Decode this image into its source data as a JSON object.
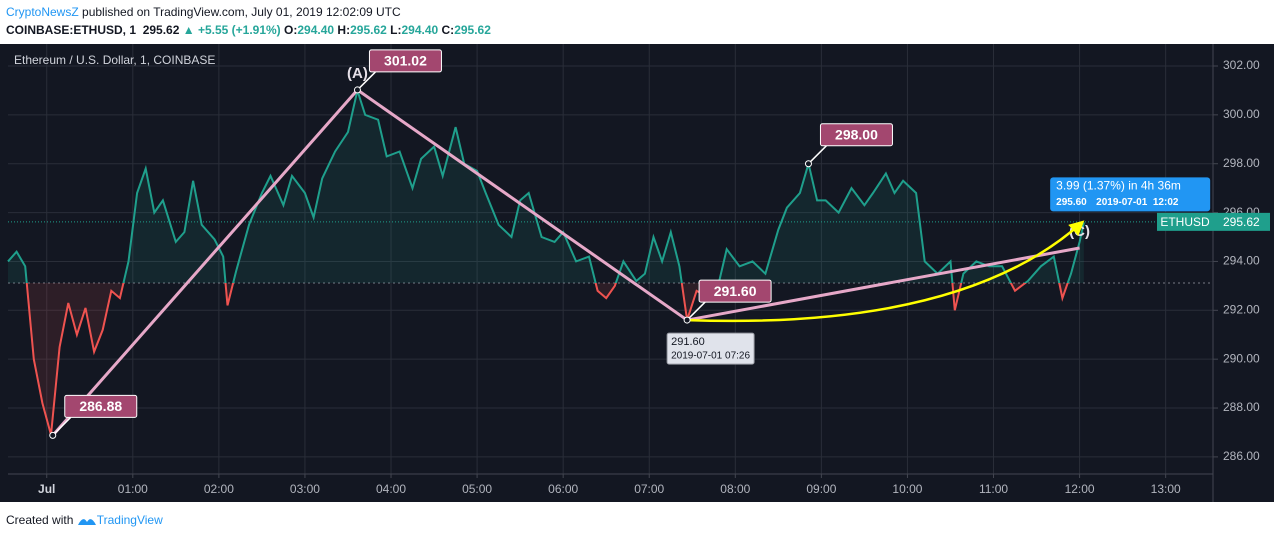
{
  "header": {
    "author": "CryptoNewsZ",
    "published": "published on TradingView.com, July 01, 2019 12:02:09 UTC",
    "symbol": "COINBASE:ETHUSD, 1",
    "price": "295.62",
    "change": "+5.55 (+1.91%)",
    "ohlc": [
      {
        "key": "O:",
        "value": "294.40"
      },
      {
        "key": "H:",
        "value": "295.62"
      },
      {
        "key": "L:",
        "value": "294.40"
      },
      {
        "key": "C:",
        "value": "295.62"
      }
    ]
  },
  "footer": {
    "text": "Created with",
    "brand": "TradingView"
  },
  "chart_data": {
    "type": "line",
    "title": "Ethereum / U.S. Dollar, 1, COINBASE",
    "xlim": [
      -0.45,
      13.55
    ],
    "xticks": [
      {
        "value": 0,
        "label": "Jul"
      },
      {
        "value": 1,
        "label": "01:00"
      },
      {
        "value": 2,
        "label": "02:00"
      },
      {
        "value": 3,
        "label": "03:00"
      },
      {
        "value": 4,
        "label": "04:00"
      },
      {
        "value": 5,
        "label": "05:00"
      },
      {
        "value": 6,
        "label": "06:00"
      },
      {
        "value": 7,
        "label": "07:00"
      },
      {
        "value": 8,
        "label": "08:00"
      },
      {
        "value": 9,
        "label": "09:00"
      },
      {
        "value": 10,
        "label": "10:00"
      },
      {
        "value": 11,
        "label": "11:00"
      },
      {
        "value": 12,
        "label": "12:00"
      },
      {
        "value": 13,
        "label": "13:00"
      }
    ],
    "ylim": [
      285.3,
      302.9
    ],
    "yticks": [
      {
        "value": 286,
        "label": "286.00"
      },
      {
        "value": 288,
        "label": "288.00"
      },
      {
        "value": 290,
        "label": "290.00"
      },
      {
        "value": 292,
        "label": "292.00"
      },
      {
        "value": 294,
        "label": "294.00"
      },
      {
        "value": 296,
        "label": "296.00"
      },
      {
        "value": 298,
        "label": "298.00"
      },
      {
        "value": 300,
        "label": "300.00"
      },
      {
        "value": 302,
        "label": "302.00"
      }
    ],
    "grid": true,
    "baseline": 293.12,
    "up_color": "#1f9f8c",
    "down_color": "#ef5350",
    "x": [
      -0.45,
      -0.35,
      -0.25,
      -0.15,
      -0.05,
      0.05,
      0.15,
      0.25,
      0.35,
      0.45,
      0.55,
      0.65,
      0.75,
      0.85,
      0.95,
      1.05,
      1.15,
      1.25,
      1.35,
      1.5,
      1.6,
      1.7,
      1.8,
      1.95,
      2.05,
      2.1,
      2.2,
      2.35,
      2.5,
      2.6,
      2.75,
      2.85,
      3.0,
      3.1,
      3.2,
      3.35,
      3.5,
      3.61,
      3.7,
      3.85,
      3.95,
      4.1,
      4.25,
      4.35,
      4.5,
      4.6,
      4.75,
      4.85,
      5.0,
      5.1,
      5.25,
      5.4,
      5.5,
      5.6,
      5.75,
      5.9,
      6.0,
      6.15,
      6.3,
      6.4,
      6.5,
      6.6,
      6.7,
      6.85,
      6.95,
      7.05,
      7.15,
      7.25,
      7.35,
      7.44,
      7.55,
      7.7,
      7.8,
      7.9,
      8.05,
      8.2,
      8.35,
      8.5,
      8.6,
      8.75,
      8.85,
      8.95,
      9.05,
      9.2,
      9.35,
      9.5,
      9.6,
      9.75,
      9.85,
      9.95,
      10.1,
      10.2,
      10.35,
      10.5,
      10.55,
      10.65,
      10.8,
      10.95,
      11.1,
      11.25,
      11.4,
      11.55,
      11.7,
      11.8,
      11.9,
      12.0,
      12.05
    ],
    "values": [
      294.0,
      294.4,
      293.8,
      290.0,
      288.2,
      286.9,
      290.5,
      292.3,
      291.0,
      292.1,
      290.3,
      291.2,
      292.8,
      292.5,
      294.0,
      296.8,
      297.8,
      296.0,
      296.5,
      294.8,
      295.2,
      297.3,
      295.5,
      294.9,
      294.2,
      292.2,
      293.6,
      295.5,
      296.8,
      297.5,
      296.3,
      297.5,
      296.8,
      295.8,
      297.4,
      298.5,
      299.3,
      301.0,
      300.0,
      299.8,
      298.3,
      298.5,
      297.0,
      298.2,
      298.7,
      297.5,
      299.5,
      298.0,
      297.7,
      296.8,
      295.5,
      295.0,
      296.5,
      296.8,
      295.0,
      294.8,
      295.2,
      294.0,
      294.2,
      292.8,
      292.5,
      293.0,
      294.0,
      293.2,
      293.5,
      295.0,
      294.0,
      295.2,
      293.8,
      291.6,
      292.8,
      292.5,
      293.0,
      294.5,
      293.8,
      294.0,
      293.5,
      295.3,
      296.2,
      296.8,
      298.0,
      296.5,
      296.5,
      296.0,
      297.0,
      296.3,
      296.8,
      297.6,
      296.8,
      297.3,
      296.8,
      294.0,
      293.5,
      294.0,
      292.0,
      293.5,
      294.0,
      293.8,
      293.8,
      292.8,
      293.2,
      293.8,
      294.2,
      292.5,
      293.5,
      294.8,
      295.6
    ],
    "points": {
      "x": [
        3.61,
        0.07,
        7.44,
        8.85
      ],
      "values": [
        301.02,
        286.88,
        291.6,
        298.0
      ],
      "value_labels": [
        "301.02",
        "286.88",
        "291.60",
        "298.00"
      ],
      "color": "#a3476f"
    },
    "pattern": {
      "x": [
        0.07,
        3.61,
        7.44,
        12.0
      ],
      "values": [
        286.88,
        301.02,
        291.6,
        294.55
      ],
      "labels": [
        null,
        "(A)",
        null,
        "(C)"
      ],
      "color": "#e6a8c8"
    },
    "measure": {
      "x": [
        7.44,
        12.03
      ],
      "values": [
        291.6,
        295.6
      ],
      "value_labels": [
        "291.60",
        "295.60"
      ],
      "start_time": "2019-07-01 07:26",
      "text": "3.99 (1.37%) in 4h 36m",
      "time": "2019-07-01  12:02",
      "color": "#ffff00",
      "box_color": "#2196f3"
    },
    "last": {
      "name": "ETHUSD",
      "value": 295.62,
      "value_label": "295.62"
    }
  }
}
